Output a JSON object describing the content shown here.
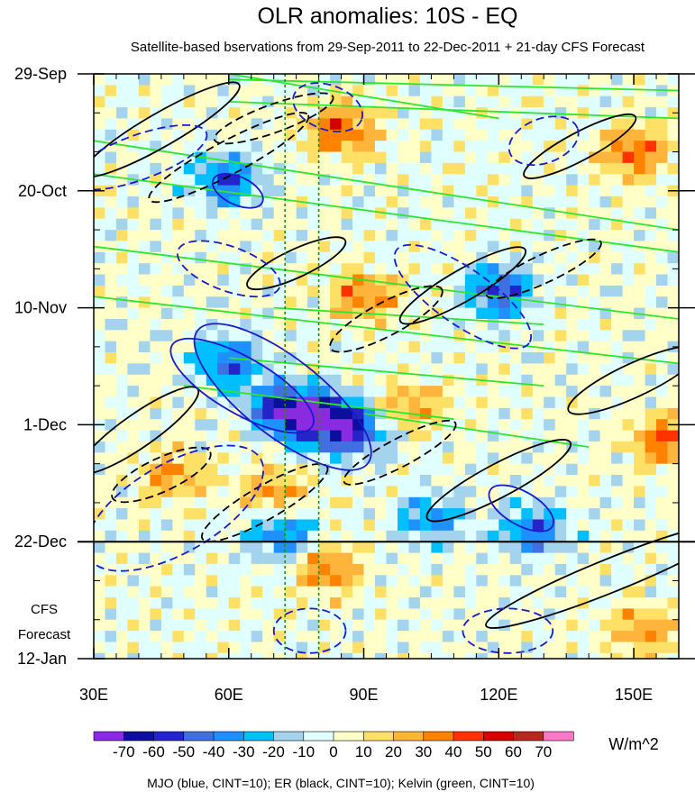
{
  "chart_data": {
    "type": "heatmap",
    "title": "OLR anomalies: 10S - EQ",
    "subtitle": "Satellite-based bservations from 29-Sep-2011 to 22-Dec-2011 + 21-day CFS Forecast",
    "xlabel": "",
    "ylabel": "",
    "x_ticks": [
      {
        "value": 30,
        "label": "30E"
      },
      {
        "value": 60,
        "label": "60E"
      },
      {
        "value": 90,
        "label": "90E"
      },
      {
        "value": 120,
        "label": "120E"
      },
      {
        "value": 150,
        "label": "150E"
      }
    ],
    "xlim": [
      30,
      160
    ],
    "y_ticks": [
      {
        "value": 0,
        "label": "29-Sep"
      },
      {
        "value": 21,
        "label": "20-Oct"
      },
      {
        "value": 42,
        "label": "10-Nov"
      },
      {
        "value": 63,
        "label": "1-Dec"
      },
      {
        "value": 84,
        "label": "22-Dec"
      },
      {
        "value": 105,
        "label": "12-Jan"
      }
    ],
    "ylim_days": [
      0,
      105
    ],
    "forecast_start_day": 84,
    "forecast_label_lines": [
      "CFS",
      "Forecast"
    ],
    "reference_longitudes": [
      72.5,
      80
    ],
    "colorbar": {
      "units": "W/m^2",
      "levels": [
        -70,
        -60,
        -50,
        -40,
        -30,
        -20,
        -10,
        0,
        10,
        20,
        30,
        40,
        50,
        60,
        70
      ],
      "labels": [
        "-70",
        "-60",
        "-50",
        "-40",
        "-30",
        "-20",
        "-10",
        "0",
        "10",
        "20",
        "30",
        "40",
        "50",
        "60",
        "70"
      ],
      "colors": [
        "#8a2be2",
        "#0d0d9e",
        "#2424c8",
        "#3f6fe0",
        "#1e90ff",
        "#00bfff",
        "#a4d3ee",
        "#e0ffff",
        "#ffffc8",
        "#ffe066",
        "#ffb43c",
        "#ff8200",
        "#ff3200",
        "#d20000",
        "#b4281e",
        "#ff78c8"
      ]
    },
    "footer": "MJO (blue, CINT=10); ER (black, CINT=10); Kelvin (green, CINT=10)",
    "series": [
      {
        "name": "MJO",
        "color": "#1a1acd",
        "cint": 10
      },
      {
        "name": "ER",
        "color": "#000000",
        "cint": 10
      },
      {
        "name": "Kelvin",
        "color": "#2ee62e",
        "cint": 10
      }
    ],
    "field_features": [
      {
        "lon": 85,
        "day": 10,
        "value": 45
      },
      {
        "lon": 150,
        "day": 14,
        "value": 40
      },
      {
        "lon": 60,
        "day": 19,
        "value": -45
      },
      {
        "lon": 90,
        "day": 40,
        "value": 35
      },
      {
        "lon": 120,
        "day": 39,
        "value": -50
      },
      {
        "lon": 60,
        "day": 52,
        "value": -45
      },
      {
        "lon": 72,
        "day": 60,
        "value": -55
      },
      {
        "lon": 80,
        "day": 62,
        "value": -65
      },
      {
        "lon": 88,
        "day": 64,
        "value": -50
      },
      {
        "lon": 47,
        "day": 72,
        "value": 30
      },
      {
        "lon": 70,
        "day": 75,
        "value": 30
      },
      {
        "lon": 100,
        "day": 60,
        "value": 30
      },
      {
        "lon": 82,
        "day": 89,
        "value": 35
      },
      {
        "lon": 72,
        "day": 83,
        "value": -40
      },
      {
        "lon": 105,
        "day": 80,
        "value": -35
      },
      {
        "lon": 128,
        "day": 82,
        "value": -40
      },
      {
        "lon": 157,
        "day": 66,
        "value": 40
      },
      {
        "lon": 152,
        "day": 100,
        "value": 30
      }
    ]
  }
}
